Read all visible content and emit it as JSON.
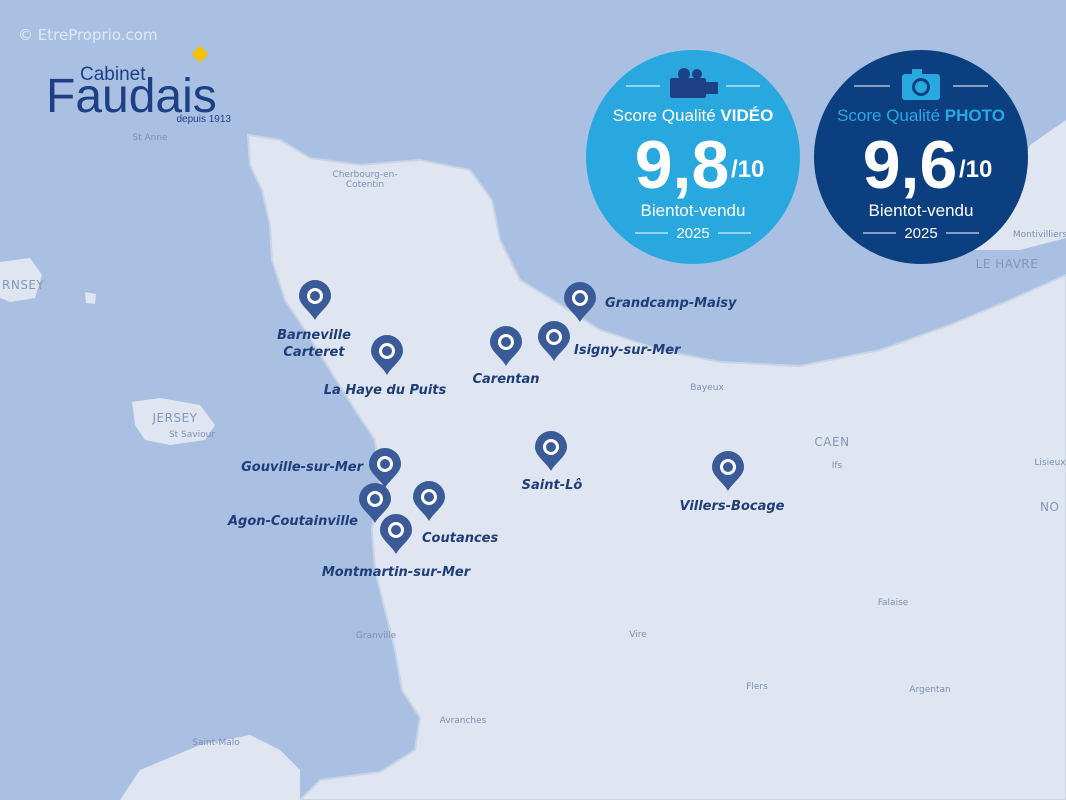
{
  "watermark": "© EtreProprio.com",
  "logo": {
    "line1": "Cabinet",
    "line2": "Faudais",
    "tagline": "depuis 1913"
  },
  "badges": [
    {
      "label": "Score Qualité",
      "highlight": "VIDÉO",
      "score": "9,8",
      "scale": "/10",
      "source": "Bientot-vendu",
      "year": "2025"
    },
    {
      "label": "Score Qualité",
      "highlight": "PHOTO",
      "score": "9,6",
      "scale": "/10",
      "source": "Bientot-vendu",
      "year": "2025"
    }
  ],
  "markers": [
    {
      "label": [
        "Grandcamp-Maisy"
      ]
    },
    {
      "label": [
        "Barneville",
        "Carteret"
      ]
    },
    {
      "label": [
        "La Haye du Puits"
      ]
    },
    {
      "label": [
        "Carentan"
      ]
    },
    {
      "label": [
        "Isigny-sur-Mer"
      ]
    },
    {
      "label": [
        "Gouville-sur-Mer"
      ]
    },
    {
      "label": [
        "Agon-Coutainville"
      ]
    },
    {
      "label": [
        "Coutances"
      ]
    },
    {
      "label": [
        "Montmartin-sur-Mer"
      ]
    },
    {
      "label": [
        "Saint-Lô"
      ]
    },
    {
      "label": [
        "Villers-Bocage"
      ]
    }
  ],
  "places": [
    {
      "label": [
        "St Anne"
      ]
    },
    {
      "label": [
        "Cherbourg-en-",
        "Cotentin"
      ]
    },
    {
      "label": [
        "JERSEY"
      ]
    },
    {
      "label": [
        "St Saviour"
      ]
    },
    {
      "label": [
        "RNSEY"
      ]
    },
    {
      "label": [
        "Bayeux"
      ]
    },
    {
      "label": [
        "CAEN"
      ]
    },
    {
      "label": [
        "Ifs"
      ]
    },
    {
      "label": [
        "Lisieux"
      ]
    },
    {
      "label": [
        "Falaise"
      ]
    },
    {
      "label": [
        "Vire"
      ]
    },
    {
      "label": [
        "Flers"
      ]
    },
    {
      "label": [
        "Argentan"
      ]
    },
    {
      "label": [
        "Granville"
      ]
    },
    {
      "label": [
        "Avranches"
      ]
    },
    {
      "label": [
        "Saint-Malo"
      ]
    },
    {
      "label": [
        "LE HAVRE"
      ]
    },
    {
      "label": [
        "Montivilliers"
      ]
    },
    {
      "label": [
        "NO"
      ]
    }
  ]
}
